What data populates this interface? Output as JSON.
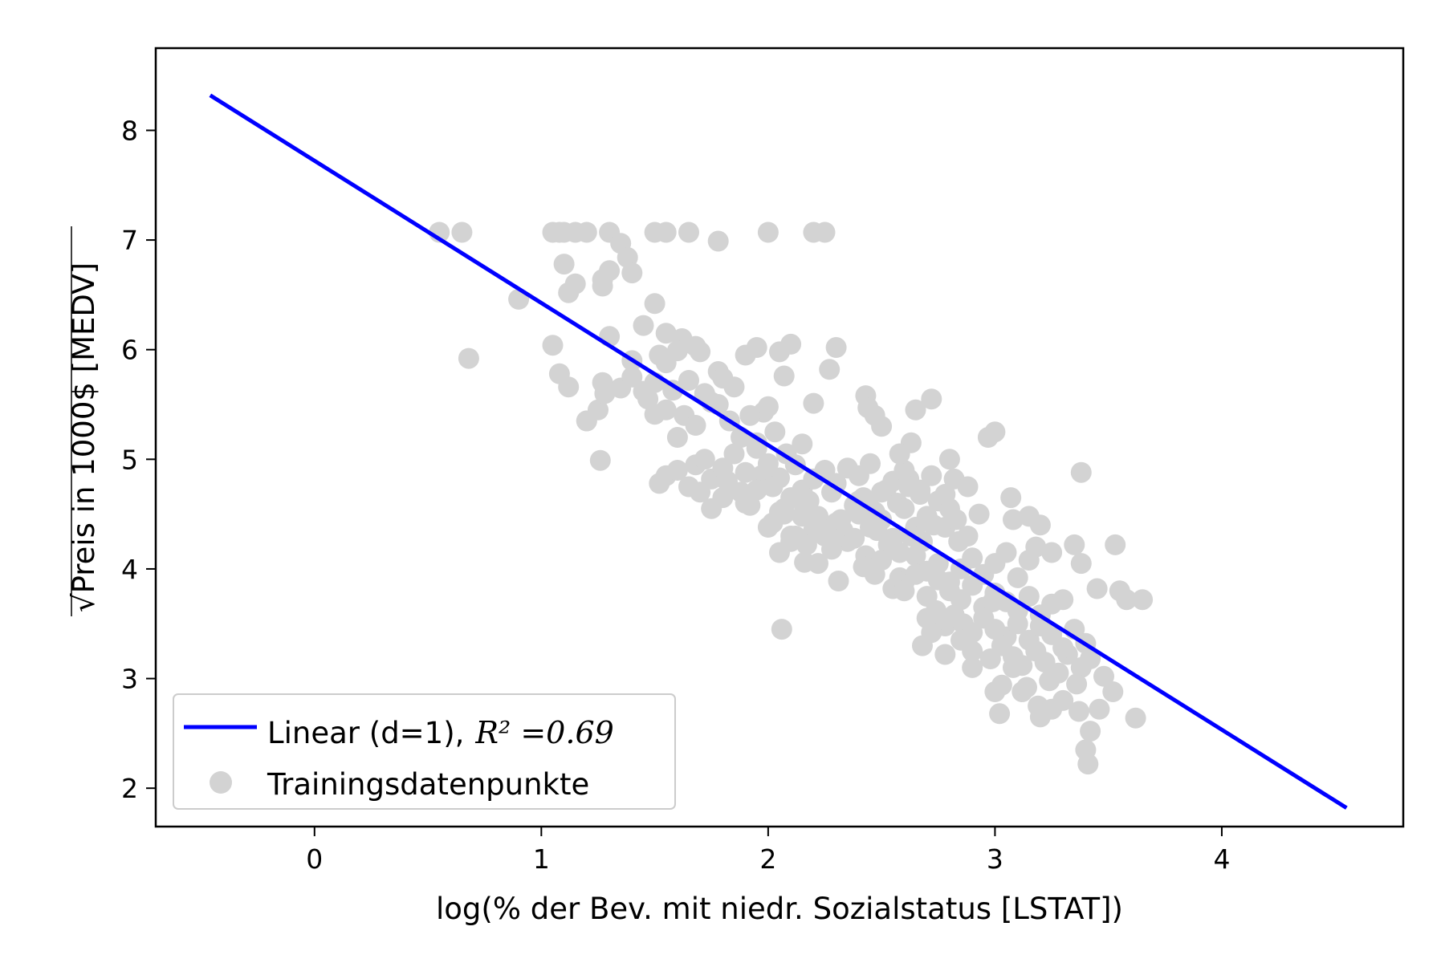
{
  "chart_data": {
    "type": "scatter",
    "xlabel": "log(% der Bev. mit niedr. Sozialstatus [LSTAT])",
    "ylabel": "Preis in 1000$ [MEDV]",
    "ylabel_prefix": "√",
    "xlim": [
      -0.7,
      4.8
    ],
    "ylim": [
      1.65,
      8.75
    ],
    "x_ticks": [
      0,
      1,
      2,
      3,
      4
    ],
    "y_ticks": [
      2,
      3,
      4,
      5,
      6,
      7,
      8
    ],
    "grid": false,
    "legend_placement": "lower-left",
    "colors": {
      "line": "#0000ff",
      "points": "#d3d3d3",
      "axes": "#000000"
    },
    "series": [
      {
        "name": "Linear (d=1),",
        "name_math": "R² =0.69",
        "kind": "line",
        "x": [
          -0.46,
          4.55
        ],
        "y": [
          8.32,
          1.82
        ]
      },
      {
        "name": "Trainingsdatenpunkte",
        "kind": "scatter",
        "x": [
          0.55,
          0.65,
          0.68,
          0.9,
          1.05,
          1.08,
          1.1,
          1.15,
          1.2,
          1.3,
          1.5,
          1.55,
          1.65,
          1.78,
          2.0,
          2.2,
          2.25,
          1.1,
          1.15,
          1.12,
          1.27,
          1.3,
          1.35,
          1.38,
          1.4,
          1.45,
          1.27,
          1.5,
          1.55,
          1.62,
          1.7,
          1.78,
          1.05,
          1.08,
          1.12,
          1.2,
          1.25,
          1.27,
          1.3,
          1.35,
          1.4,
          1.45,
          1.5,
          1.52,
          1.55,
          1.58,
          1.6,
          1.65,
          1.68,
          1.72,
          1.75,
          1.8,
          1.85,
          1.9,
          1.95,
          1.98,
          2.05,
          2.07,
          2.1,
          2.2,
          2.27,
          2.3,
          1.2,
          1.26,
          1.28,
          1.4,
          1.47,
          1.5,
          1.55,
          1.6,
          1.63,
          1.68,
          1.72,
          1.78,
          1.83,
          1.88,
          1.92,
          1.95,
          2.0,
          1.52,
          1.55,
          1.6,
          1.65,
          1.68,
          1.72,
          1.75,
          1.8,
          1.85,
          1.9,
          1.95,
          2.0,
          2.03,
          2.05,
          2.08,
          2.12,
          2.15,
          1.7,
          1.75,
          1.8,
          1.82,
          1.88,
          1.92,
          1.97,
          2.02,
          2.07,
          2.1,
          2.15,
          2.2,
          2.25,
          2.3,
          2.35,
          2.4,
          2.45,
          1.9,
          1.95,
          2.02,
          2.07,
          2.12,
          2.18,
          2.22,
          2.28,
          2.33,
          2.38,
          2.42,
          2.47,
          2.52,
          2.57,
          2.62,
          2.67,
          2.0,
          2.05,
          2.1,
          2.15,
          2.2,
          2.25,
          2.3,
          2.35,
          2.4,
          2.45,
          2.5,
          2.55,
          2.6,
          2.65,
          2.7,
          2.75,
          2.8,
          2.17,
          2.22,
          2.28,
          2.32,
          2.38,
          2.43,
          2.48,
          2.53,
          2.58,
          2.63,
          2.68,
          2.73,
          2.78,
          2.83,
          2.88,
          2.93,
          2.05,
          2.1,
          2.13,
          2.16,
          2.25,
          2.32,
          2.4,
          2.45,
          2.5,
          2.55,
          2.6,
          2.62,
          2.67,
          2.72,
          2.78,
          2.82,
          2.88,
          2.42,
          2.47,
          2.5,
          2.58,
          2.65,
          2.7,
          2.75,
          2.8,
          2.85,
          2.9,
          2.95,
          3.0,
          3.05,
          3.1,
          3.15,
          2.55,
          2.6,
          2.65,
          2.7,
          2.75,
          2.8,
          2.85,
          2.9,
          2.95,
          3.0,
          3.05,
          3.1,
          3.15,
          3.2,
          3.25,
          3.3,
          2.7,
          2.74,
          2.78,
          2.82,
          2.86,
          2.9,
          2.95,
          3.0,
          3.05,
          3.1,
          3.15,
          3.2,
          3.25,
          3.3,
          3.35,
          3.4,
          2.68,
          2.72,
          2.78,
          2.85,
          2.9,
          2.98,
          3.03,
          3.08,
          3.12,
          3.18,
          3.22,
          3.28,
          3.32,
          3.38,
          3.42,
          3.48,
          2.97,
          3.0,
          3.07,
          3.08,
          3.15,
          3.18,
          3.2,
          3.25,
          3.35,
          3.38,
          3.45,
          3.53,
          3.55,
          3.58,
          3.65,
          3.0,
          3.02,
          3.12,
          3.2,
          3.25,
          3.3,
          3.37,
          3.42,
          3.46,
          3.52,
          3.62,
          2.9,
          3.03,
          3.08,
          3.14,
          3.19,
          3.24,
          3.3,
          3.36,
          3.4,
          3.41,
          2.06,
          2.16,
          2.31,
          2.43,
          2.5,
          2.6,
          2.63,
          2.84,
          2.99,
          3.38,
          2.44,
          2.47,
          2.58,
          2.65,
          2.72,
          2.8
        ],
        "y": [
          7.07,
          7.07,
          5.92,
          6.46,
          7.07,
          7.07,
          7.07,
          7.07,
          7.07,
          7.07,
          7.07,
          7.07,
          7.07,
          6.99,
          7.07,
          7.07,
          7.07,
          6.78,
          6.6,
          6.52,
          6.58,
          6.72,
          6.97,
          6.84,
          6.7,
          6.22,
          6.64,
          6.42,
          6.15,
          6.1,
          5.98,
          5.8,
          6.04,
          5.78,
          5.66,
          5.35,
          5.45,
          5.7,
          6.12,
          5.65,
          5.9,
          5.62,
          5.41,
          5.95,
          5.88,
          5.63,
          5.99,
          5.72,
          6.03,
          5.58,
          5.52,
          5.74,
          5.66,
          5.95,
          6.02,
          5.43,
          5.98,
          5.76,
          6.05,
          5.51,
          5.82,
          6.02,
          5.35,
          4.99,
          5.6,
          5.75,
          5.55,
          5.7,
          5.45,
          5.2,
          5.4,
          5.31,
          5.6,
          5.5,
          5.35,
          5.2,
          5.4,
          5.15,
          5.48,
          4.78,
          4.85,
          4.9,
          4.75,
          4.95,
          5.0,
          4.82,
          4.92,
          5.05,
          4.88,
          5.1,
          4.96,
          5.25,
          4.83,
          5.05,
          4.95,
          5.14,
          4.7,
          4.55,
          4.65,
          4.8,
          4.7,
          4.58,
          4.85,
          4.75,
          4.5,
          4.65,
          4.72,
          4.82,
          4.9,
          4.78,
          4.92,
          4.85,
          4.96,
          4.6,
          4.72,
          4.42,
          4.55,
          4.3,
          4.62,
          4.48,
          4.7,
          4.35,
          4.58,
          4.65,
          4.52,
          4.72,
          4.6,
          4.82,
          4.68,
          4.38,
          4.15,
          4.25,
          4.48,
          4.35,
          4.3,
          4.42,
          4.25,
          4.5,
          4.38,
          4.45,
          4.28,
          4.55,
          4.38,
          4.48,
          4.62,
          4.55,
          4.22,
          4.05,
          4.18,
          4.32,
          4.28,
          4.12,
          4.35,
          4.22,
          4.15,
          4.3,
          4.25,
          4.4,
          4.38,
          4.45,
          4.3,
          4.5,
          4.52,
          4.3,
          4.28,
          4.58,
          4.35,
          4.45,
          4.62,
          4.55,
          4.7,
          4.8,
          4.9,
          4.75,
          4.72,
          4.85,
          4.68,
          4.82,
          4.75,
          4.02,
          3.95,
          4.08,
          3.92,
          4.12,
          3.98,
          4.05,
          3.88,
          4.0,
          4.1,
          3.95,
          4.05,
          4.15,
          3.92,
          4.08,
          3.82,
          3.88,
          3.95,
          3.75,
          3.9,
          3.8,
          3.72,
          3.85,
          3.65,
          3.78,
          3.7,
          3.62,
          3.75,
          3.58,
          3.68,
          3.72,
          3.55,
          3.62,
          3.48,
          3.58,
          3.5,
          3.42,
          3.55,
          3.45,
          3.38,
          3.5,
          3.35,
          3.48,
          3.4,
          3.28,
          3.45,
          3.32,
          3.3,
          3.42,
          3.22,
          3.35,
          3.25,
          3.18,
          3.3,
          3.2,
          3.12,
          3.25,
          3.15,
          3.05,
          3.22,
          3.1,
          3.18,
          3.02,
          5.2,
          5.25,
          4.65,
          4.45,
          4.48,
          4.2,
          4.4,
          4.15,
          4.22,
          4.05,
          3.82,
          4.22,
          3.8,
          3.72,
          3.72,
          2.88,
          2.68,
          2.88,
          2.65,
          2.72,
          2.8,
          2.7,
          2.52,
          2.72,
          2.88,
          2.64,
          3.1,
          2.94,
          3.1,
          2.92,
          2.75,
          2.98,
          3.28,
          2.95,
          2.35,
          2.22,
          3.45,
          4.06,
          3.89,
          5.58,
          5.3,
          3.8,
          5.15,
          4.25,
          3.7,
          4.88,
          5.47,
          5.4,
          5.05,
          5.45,
          5.55,
          5.0
        ]
      }
    ]
  }
}
